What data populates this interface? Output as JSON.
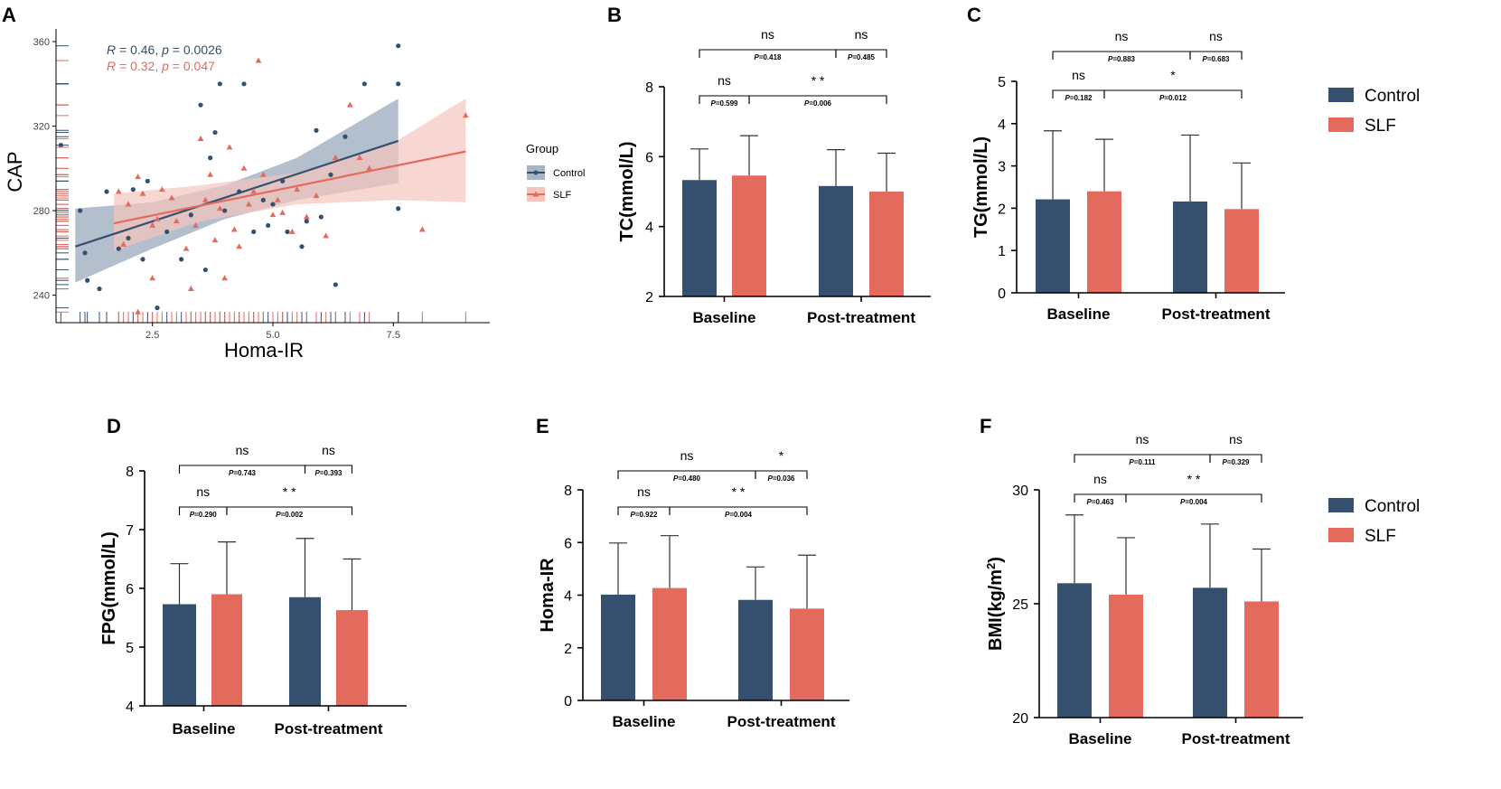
{
  "colors": {
    "control": "#34506e",
    "slf": "#e46a5e",
    "control_band": "#a6b4c4",
    "slf_band": "#f5c4bd",
    "axis": "#000000"
  },
  "legend": {
    "control_label": "Control",
    "slf_label": "SLF"
  },
  "chart_data": [
    {
      "id": "A",
      "panel_label": "A",
      "type": "scatter",
      "xlabel": "Homa-IR",
      "ylabel": "CAP",
      "xlim": [
        0.5,
        9.5
      ],
      "ylim": [
        227,
        366
      ],
      "xticks": [
        "2.5",
        "5.0",
        "7.5"
      ],
      "yticks": [
        "240",
        "280",
        "320",
        "360"
      ],
      "legend_title": "Group",
      "stats": [
        {
          "r_prefix": "R",
          "r_text": " = 0.46, ",
          "p_prefix": "p",
          "p_text": " = 0.0026"
        },
        {
          "r_prefix": "R",
          "r_text": " = 0.32, ",
          "p_prefix": "p",
          "p_text": " = 0.047"
        }
      ],
      "series": [
        {
          "name": "Control",
          "marker": "circle",
          "fit": [
            [
              0.9,
              263
            ],
            [
              7.6,
              313
            ]
          ],
          "band_upper": [
            [
              0.9,
              281
            ],
            [
              2.5,
              284
            ],
            [
              4.0,
              292
            ],
            [
              5.5,
              305
            ],
            [
              7.6,
              333
            ]
          ],
          "band_lower": [
            [
              0.9,
              246
            ],
            [
              2.5,
              262
            ],
            [
              4.0,
              276
            ],
            [
              5.5,
              285
            ],
            [
              7.6,
              293
            ]
          ],
          "points": [
            [
              0.6,
              311
            ],
            [
              1.0,
              280
            ],
            [
              1.1,
              260
            ],
            [
              1.15,
              247
            ],
            [
              1.4,
              243
            ],
            [
              1.55,
              289
            ],
            [
              2.0,
              267
            ],
            [
              2.1,
              290
            ],
            [
              2.3,
              257
            ],
            [
              2.4,
              294
            ],
            [
              2.6,
              234
            ],
            [
              3.1,
              257
            ],
            [
              3.3,
              278
            ],
            [
              3.5,
              330
            ],
            [
              3.7,
              305
            ],
            [
              3.8,
              317
            ],
            [
              3.9,
              340
            ],
            [
              4.3,
              289
            ],
            [
              4.4,
              340
            ],
            [
              4.6,
              270
            ],
            [
              4.8,
              285
            ],
            [
              4.9,
              273
            ],
            [
              5.0,
              283
            ],
            [
              5.2,
              294
            ],
            [
              5.6,
              263
            ],
            [
              5.7,
              275
            ],
            [
              5.9,
              318
            ],
            [
              6.2,
              297
            ],
            [
              6.3,
              245
            ],
            [
              6.5,
              315
            ],
            [
              6.9,
              340
            ],
            [
              7.6,
              358
            ],
            [
              7.6,
              340
            ],
            [
              7.6,
              281
            ],
            [
              2.8,
              270
            ],
            [
              3.6,
              252
            ],
            [
              4.0,
              280
            ],
            [
              5.3,
              270
            ],
            [
              6.0,
              277
            ],
            [
              1.8,
              262
            ]
          ]
        },
        {
          "name": "SLF",
          "marker": "triangle",
          "fit": [
            [
              1.7,
              274
            ],
            [
              9.0,
              308
            ]
          ],
          "band_upper": [
            [
              1.7,
              288
            ],
            [
              3.5,
              292
            ],
            [
              5.5,
              298
            ],
            [
              7.5,
              312
            ],
            [
              9.0,
              333
            ]
          ],
          "band_lower": [
            [
              1.7,
              261
            ],
            [
              3.5,
              275
            ],
            [
              5.5,
              283
            ],
            [
              7.5,
              285
            ],
            [
              9.0,
              284
            ]
          ],
          "points": [
            [
              1.8,
              289
            ],
            [
              1.9,
              264
            ],
            [
              2.0,
              283
            ],
            [
              2.2,
              296
            ],
            [
              2.3,
              288
            ],
            [
              2.5,
              273
            ],
            [
              2.6,
              276
            ],
            [
              2.7,
              290
            ],
            [
              2.9,
              286
            ],
            [
              3.0,
              275
            ],
            [
              3.2,
              262
            ],
            [
              3.4,
              273
            ],
            [
              3.5,
              314
            ],
            [
              3.6,
              285
            ],
            [
              3.7,
              297
            ],
            [
              3.8,
              266
            ],
            [
              3.9,
              281
            ],
            [
              4.0,
              248
            ],
            [
              4.1,
              310
            ],
            [
              4.2,
              271
            ],
            [
              4.3,
              263
            ],
            [
              4.4,
              300
            ],
            [
              4.5,
              283
            ],
            [
              4.6,
              289
            ],
            [
              4.7,
              351
            ],
            [
              4.8,
              297
            ],
            [
              5.0,
              278
            ],
            [
              5.1,
              285
            ],
            [
              5.4,
              270
            ],
            [
              5.5,
              290
            ],
            [
              5.7,
              277
            ],
            [
              5.9,
              287
            ],
            [
              6.1,
              268
            ],
            [
              6.3,
              305
            ],
            [
              6.6,
              330
            ],
            [
              7.0,
              300
            ],
            [
              8.1,
              271
            ],
            [
              9.0,
              325
            ],
            [
              2.2,
              232
            ],
            [
              2.5,
              248
            ],
            [
              3.3,
              243
            ],
            [
              5.2,
              279
            ],
            [
              6.8,
              305
            ]
          ]
        }
      ]
    },
    {
      "id": "B",
      "panel_label": "B",
      "type": "bar",
      "ylabel": "TC(mmol/L)",
      "ylim": [
        2,
        8
      ],
      "yticks": [
        "2",
        "4",
        "6",
        "8"
      ],
      "categories": [
        "Baseline",
        "Post-treatment"
      ],
      "series": [
        {
          "name": "Control",
          "values": [
            5.33,
            5.16
          ],
          "sd_upper": [
            6.22,
            6.2
          ]
        },
        {
          "name": "SLF",
          "values": [
            5.46,
            5.0
          ],
          "sd_upper": [
            6.6,
            6.1
          ]
        }
      ],
      "annotations": [
        {
          "from": [
            0,
            0
          ],
          "to": [
            0,
            1
          ],
          "sig": "ns",
          "p": "=0.599",
          "level": 1
        },
        {
          "from": [
            0,
            1
          ],
          "to": [
            1,
            1
          ],
          "sig": "* *",
          "p": "=0.006",
          "level": 1
        },
        {
          "from": [
            0,
            0
          ],
          "to": [
            1,
            0
          ],
          "sig": "ns",
          "p": "=0.418",
          "level": 2
        },
        {
          "from": [
            1,
            0
          ],
          "to": [
            1,
            1
          ],
          "sig": "ns",
          "p": "=0.485",
          "level": 2
        }
      ]
    },
    {
      "id": "C",
      "panel_label": "C",
      "type": "bar",
      "ylabel": "TG(mmol/L)",
      "ylim": [
        0,
        5
      ],
      "yticks": [
        "0",
        "1",
        "2",
        "3",
        "4",
        "5"
      ],
      "categories": [
        "Baseline",
        "Post-treatment"
      ],
      "series": [
        {
          "name": "Control",
          "values": [
            2.21,
            2.16
          ],
          "sd_upper": [
            3.83,
            3.73
          ]
        },
        {
          "name": "SLF",
          "values": [
            2.4,
            1.98
          ],
          "sd_upper": [
            3.63,
            3.07
          ]
        }
      ],
      "annotations": [
        {
          "from": [
            0,
            0
          ],
          "to": [
            0,
            1
          ],
          "sig": "ns",
          "p": "=0.182",
          "level": 1
        },
        {
          "from": [
            0,
            1
          ],
          "to": [
            1,
            1
          ],
          "sig": "*",
          "p": "=0.012",
          "level": 1
        },
        {
          "from": [
            0,
            0
          ],
          "to": [
            1,
            0
          ],
          "sig": "ns",
          "p": "=0.883",
          "level": 2
        },
        {
          "from": [
            1,
            0
          ],
          "to": [
            1,
            1
          ],
          "sig": "ns",
          "p": "=0.683",
          "level": 2
        }
      ]
    },
    {
      "id": "D",
      "panel_label": "D",
      "type": "bar",
      "ylabel": "FPG(mmol/L)",
      "ylim": [
        4,
        8
      ],
      "yticks": [
        "4",
        "5",
        "6",
        "7",
        "8"
      ],
      "categories": [
        "Baseline",
        "Post-treatment"
      ],
      "series": [
        {
          "name": "Control",
          "values": [
            5.73,
            5.85
          ],
          "sd_upper": [
            6.42,
            6.85
          ]
        },
        {
          "name": "SLF",
          "values": [
            5.9,
            5.63
          ],
          "sd_upper": [
            6.79,
            6.5
          ]
        }
      ],
      "annotations": [
        {
          "from": [
            0,
            0
          ],
          "to": [
            0,
            1
          ],
          "sig": "ns",
          "p": "=0.290",
          "level": 1
        },
        {
          "from": [
            0,
            1
          ],
          "to": [
            1,
            1
          ],
          "sig": "* *",
          "p": "=0.002",
          "level": 1
        },
        {
          "from": [
            0,
            0
          ],
          "to": [
            1,
            0
          ],
          "sig": "ns",
          "p": "=0.743",
          "level": 2
        },
        {
          "from": [
            1,
            0
          ],
          "to": [
            1,
            1
          ],
          "sig": "ns",
          "p": "=0.393",
          "level": 2
        }
      ]
    },
    {
      "id": "E",
      "panel_label": "E",
      "type": "bar",
      "ylabel": "Homa-IR",
      "ylim": [
        0,
        8
      ],
      "yticks": [
        "0",
        "2",
        "4",
        "6",
        "8"
      ],
      "categories": [
        "Baseline",
        "Post-treatment"
      ],
      "series": [
        {
          "name": "Control",
          "values": [
            4.02,
            3.82
          ],
          "sd_upper": [
            5.98,
            5.07
          ]
        },
        {
          "name": "SLF",
          "values": [
            4.27,
            3.49
          ],
          "sd_upper": [
            6.26,
            5.52
          ]
        }
      ],
      "annotations": [
        {
          "from": [
            0,
            0
          ],
          "to": [
            0,
            1
          ],
          "sig": "ns",
          "p": "=0.922",
          "level": 1
        },
        {
          "from": [
            0,
            1
          ],
          "to": [
            1,
            1
          ],
          "sig": "* *",
          "p": "=0.004",
          "level": 1
        },
        {
          "from": [
            0,
            0
          ],
          "to": [
            1,
            0
          ],
          "sig": "ns",
          "p": "=0.480",
          "level": 2
        },
        {
          "from": [
            1,
            0
          ],
          "to": [
            1,
            1
          ],
          "sig": "*",
          "p": "=0.036",
          "level": 2
        }
      ]
    },
    {
      "id": "F",
      "panel_label": "F",
      "type": "bar",
      "ylabel_main": "BMI(kg/m",
      "ylabel_sup": "2",
      "ylabel_end": ")",
      "ylim": [
        20,
        30
      ],
      "yticks": [
        "20",
        "25",
        "30"
      ],
      "categories": [
        "Baseline",
        "Post-treatment"
      ],
      "series": [
        {
          "name": "Control",
          "values": [
            25.9,
            25.7
          ],
          "sd_upper": [
            28.9,
            28.5
          ]
        },
        {
          "name": "SLF",
          "values": [
            25.4,
            25.1
          ],
          "sd_upper": [
            27.9,
            27.4
          ]
        }
      ],
      "annotations": [
        {
          "from": [
            0,
            0
          ],
          "to": [
            0,
            1
          ],
          "sig": "ns",
          "p": "=0.463",
          "level": 1
        },
        {
          "from": [
            0,
            1
          ],
          "to": [
            1,
            1
          ],
          "sig": "* *",
          "p": "=0.004",
          "level": 1
        },
        {
          "from": [
            0,
            0
          ],
          "to": [
            1,
            0
          ],
          "sig": "ns",
          "p": "=0.111",
          "level": 2
        },
        {
          "from": [
            1,
            0
          ],
          "to": [
            1,
            1
          ],
          "sig": "ns",
          "p": "=0.329",
          "level": 2
        }
      ]
    }
  ]
}
